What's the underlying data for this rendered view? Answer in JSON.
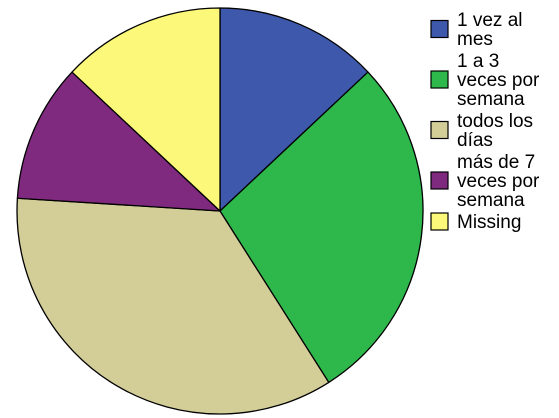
{
  "chart_data": {
    "type": "pie",
    "title": "",
    "start_angle": "12 o'clock",
    "direction": "clockwise",
    "legend_position": "right",
    "series": [
      {
        "label_lines": [
          "1 vez al",
          "mes"
        ],
        "value": 13.0,
        "color": "#3e58ac"
      },
      {
        "label_lines": [
          "1 a 3",
          "veces por",
          "semana"
        ],
        "value": 28.0,
        "color": "#2eb84b"
      },
      {
        "label_lines": [
          "todos los",
          "días"
        ],
        "value": 35.0,
        "color": "#d3ce98"
      },
      {
        "label_lines": [
          "más de 7",
          "veces por",
          "semana"
        ],
        "value": 11.0,
        "color": "#7f2a7e"
      },
      {
        "label_lines": [
          "Missing"
        ],
        "value": 13.0,
        "color": "#fbf87a"
      }
    ]
  }
}
